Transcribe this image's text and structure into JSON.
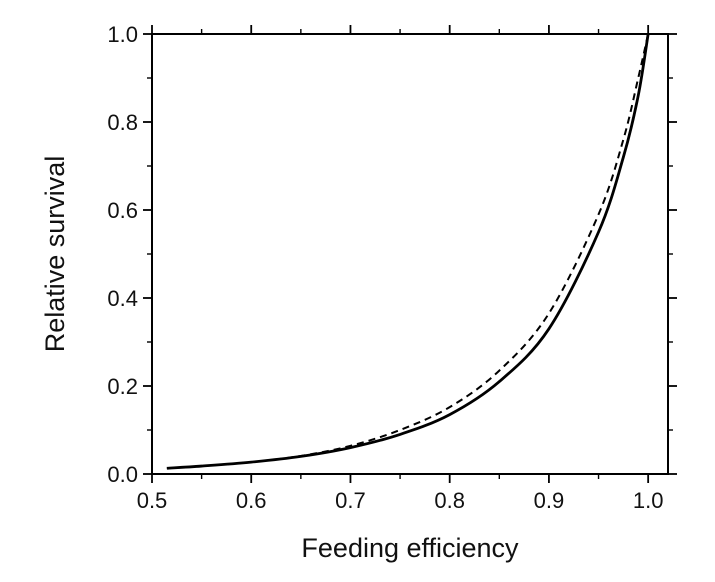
{
  "chart_data": {
    "type": "line",
    "title": "",
    "xlabel": "Feeding efficiency",
    "ylabel": "Relative survival",
    "xlim": [
      0.5,
      1.02
    ],
    "ylim": [
      0.0,
      1.0
    ],
    "xticks": [
      "0.5",
      "0.6",
      "0.7",
      "0.8",
      "0.9",
      "1.0"
    ],
    "yticks": [
      "0.0",
      "0.2",
      "0.4",
      "0.6",
      "0.8",
      "1.0"
    ],
    "grid": false,
    "legend": false,
    "series": [
      {
        "line_style": "solid",
        "color": "#000000",
        "x": [
          0.515,
          0.55,
          0.6,
          0.65,
          0.7,
          0.75,
          0.8,
          0.85,
          0.9,
          0.95,
          0.975,
          0.99,
          1.0
        ],
        "y": [
          0.013,
          0.018,
          0.027,
          0.04,
          0.06,
          0.09,
          0.135,
          0.21,
          0.33,
          0.55,
          0.72,
          0.86,
          1.0
        ]
      },
      {
        "line_style": "dashed",
        "color": "#000000",
        "x": [
          0.515,
          0.55,
          0.6,
          0.65,
          0.7,
          0.75,
          0.8,
          0.85,
          0.9,
          0.95,
          0.975,
          0.99,
          1.0
        ],
        "y": [
          0.013,
          0.018,
          0.027,
          0.041,
          0.064,
          0.1,
          0.152,
          0.235,
          0.365,
          0.59,
          0.76,
          0.9,
          1.0
        ]
      }
    ]
  }
}
